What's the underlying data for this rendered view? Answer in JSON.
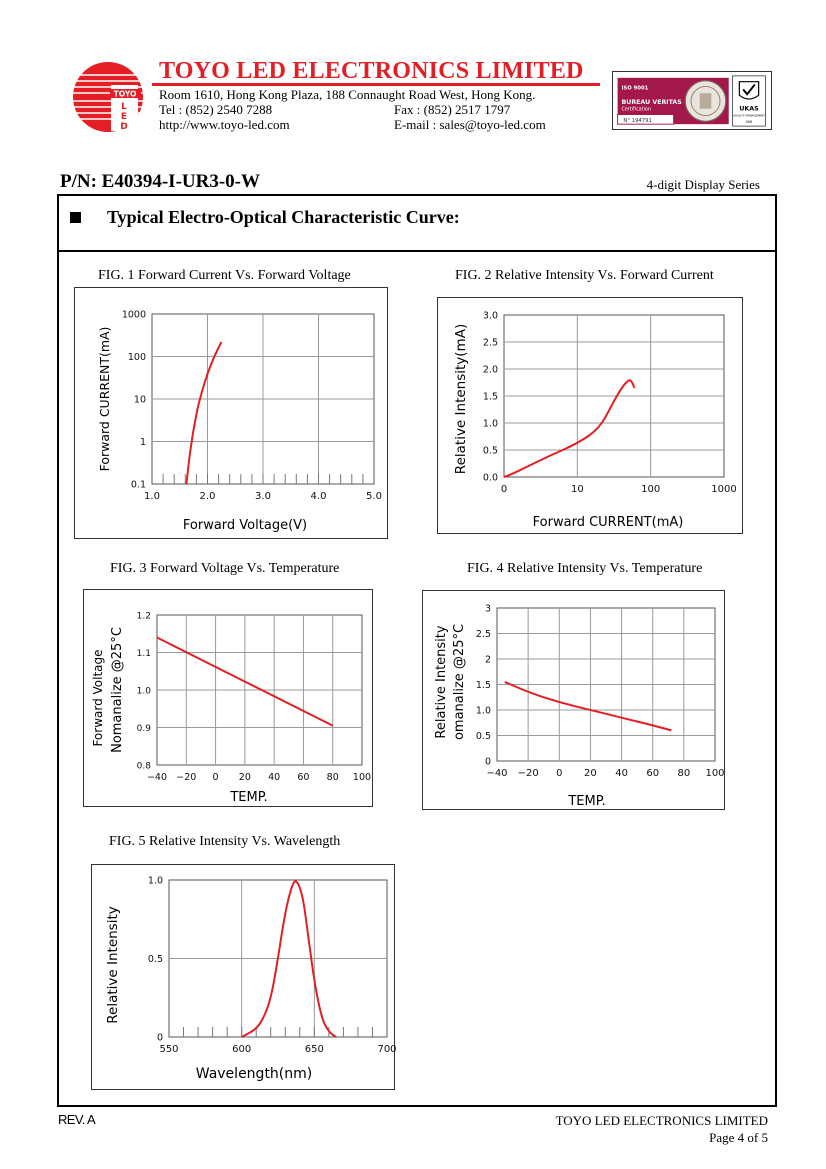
{
  "header": {
    "company_name": "TOYO LED ELECTRONICS LIMITED",
    "address": "Room 1610, Hong Kong Plaza, 188 Connaught Road West, Hong Kong.",
    "tel": "Tel : (852) 2540 7288",
    "fax": "Fax : (852) 2517 1797",
    "website": "http://www.toyo-led.com",
    "email": "E-mail : sales@toyo-led.com",
    "logo_text": [
      "TOYO",
      "L",
      "E",
      "D"
    ],
    "brand_color": "#e31e24"
  },
  "certification": {
    "iso": "ISO 9001",
    "body": "BUREAU VERITAS",
    "label": "Certification",
    "number": "N° 194791",
    "ukas": "UKAS",
    "ukas_sub": "QUALITY MANAGEMENT",
    "ukas_code": "008",
    "color": "#a3174a"
  },
  "part": {
    "pn": "P/N: E40394-I-UR3-0-W",
    "series": "4-digit Display Series"
  },
  "section": {
    "title": "Typical Electro-Optical Characteristic Curve:"
  },
  "footer": {
    "rev": "REV. A",
    "company": "TOYO LED ELECTRONICS LIMITED",
    "page": "Page 4 of 5"
  },
  "chart_data": [
    {
      "id": "fig1",
      "type": "line",
      "caption": "FIG. 1 Forward Current Vs. Forward Voltage",
      "xlabel": "Forward Voltage(V)",
      "ylabel": "Forward CURRENT(mA)",
      "xlim": [
        1.0,
        5.0
      ],
      "ylim": [
        0.1,
        1000
      ],
      "yscale": "log",
      "xticks": [
        "1.0",
        "2.0",
        "3.0",
        "4.0",
        "5.0"
      ],
      "yticks": [
        "0.1",
        "1",
        "10",
        "100",
        "1000"
      ],
      "series": [
        {
          "x": [
            1.62,
            1.68,
            1.75,
            1.82,
            1.9,
            2.0,
            2.12,
            2.25
          ],
          "y": [
            0.1,
            0.5,
            2,
            6,
            15,
            40,
            100,
            220
          ],
          "color": "#e31e24"
        }
      ]
    },
    {
      "id": "fig2",
      "type": "line",
      "caption": "FIG. 2 Relative Intensity Vs. Forward Current",
      "xlabel": "Forward CURRENT(mA)",
      "ylabel": "Relative Intensity(mA)",
      "xlim": [
        0,
        1000
      ],
      "ylim": [
        0,
        3.0
      ],
      "xticks": [
        "0",
        "10",
        "100",
        "1000"
      ],
      "yticks": [
        "0.0",
        "0.5",
        "1.0",
        "1.5",
        "2.0",
        "2.5",
        "3.0"
      ],
      "series": [
        {
          "x": [
            0,
            1,
            3,
            6,
            10,
            20,
            30,
            40,
            50,
            55,
            60
          ],
          "y": [
            0.0,
            0.05,
            0.18,
            0.38,
            0.62,
            0.9,
            1.35,
            1.65,
            1.8,
            1.78,
            1.65
          ],
          "color": "#e31e24"
        }
      ]
    },
    {
      "id": "fig3",
      "type": "line",
      "caption": "FIG. 3 Forward Voltage Vs. Temperature",
      "xlabel": "TEMP.",
      "ylabel": [
        "Forward Voltage",
        "Nomanalize @25°C"
      ],
      "xlim": [
        -40,
        100
      ],
      "ylim": [
        0.8,
        1.2
      ],
      "xticks": [
        "-40",
        "-20",
        "0",
        "20",
        "40",
        "60",
        "80",
        "100"
      ],
      "yticks": [
        "0.8",
        "0.9",
        "1.0",
        "1.1",
        "1.2"
      ],
      "series": [
        {
          "x": [
            -40,
            80
          ],
          "y": [
            1.14,
            0.905
          ],
          "color": "#e31e24"
        }
      ]
    },
    {
      "id": "fig4",
      "type": "line",
      "caption": "FIG. 4 Relative Intensity Vs. Temperature",
      "xlabel": "TEMP.",
      "ylabel": [
        "Relative Intensity",
        "omanalize @25°C"
      ],
      "xlim": [
        -40,
        100
      ],
      "ylim": [
        0,
        3
      ],
      "xticks": [
        "-40",
        "-20",
        "0",
        "20",
        "40",
        "60",
        "80",
        "100"
      ],
      "yticks": [
        "0",
        "0.5",
        "1.0",
        "1.5",
        "2",
        "2.5",
        "3"
      ],
      "series": [
        {
          "x": [
            -35,
            -20,
            0,
            20,
            40,
            60,
            72
          ],
          "y": [
            1.55,
            1.35,
            1.15,
            1.0,
            0.85,
            0.7,
            0.6
          ],
          "color": "#e31e24"
        }
      ]
    },
    {
      "id": "fig5",
      "type": "line",
      "caption": "FIG. 5 Relative Intensity Vs. Wavelength",
      "xlabel": "Wavelength(nm)",
      "ylabel": "Relative Intensity",
      "xlim": [
        550,
        700
      ],
      "ylim": [
        0,
        1.0
      ],
      "xticks": [
        "550",
        "600",
        "650",
        "700"
      ],
      "yticks": [
        "0",
        "0.5",
        "1.0"
      ],
      "series": [
        {
          "x": [
            600,
            610,
            615,
            620,
            625,
            630,
            635,
            638,
            642,
            645,
            650,
            655,
            660,
            665
          ],
          "y": [
            0.0,
            0.05,
            0.12,
            0.24,
            0.5,
            0.8,
            0.98,
            1.0,
            0.9,
            0.7,
            0.35,
            0.12,
            0.03,
            0.0
          ],
          "color": "#e31e24"
        }
      ]
    }
  ]
}
